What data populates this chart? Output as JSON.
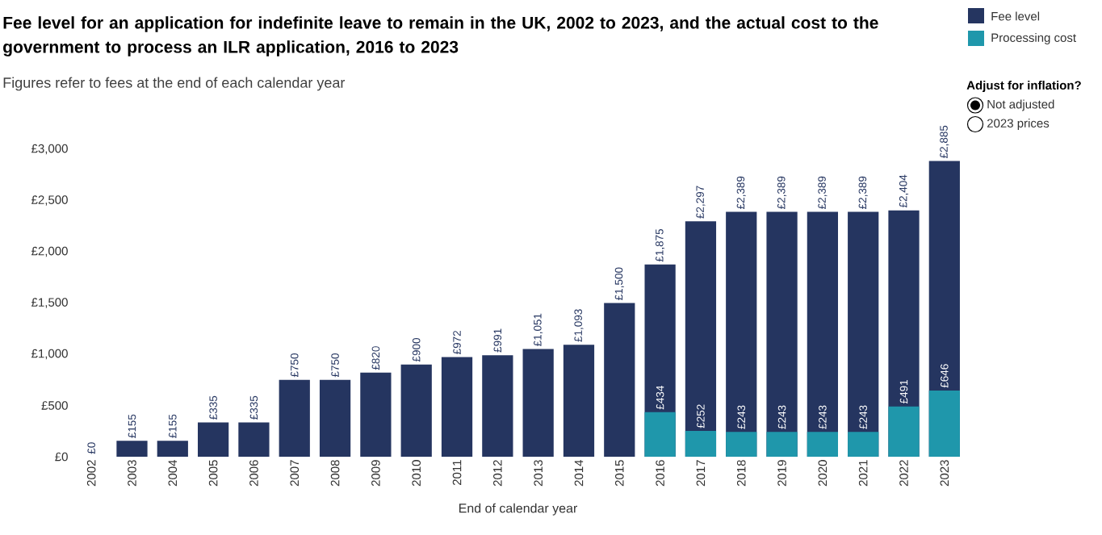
{
  "chart_data": {
    "type": "bar",
    "title": "Fee level for an application for indefinite leave to remain in the UK, 2002 to 2023, and the actual cost to the government to process an ILR application, 2016 to 2023",
    "subtitle": "Figures refer to fees at the end of each calendar year",
    "xlabel": "End of calendar year",
    "categories": [
      "2002",
      "2003",
      "2004",
      "2005",
      "2006",
      "2007",
      "2008",
      "2009",
      "2010",
      "2011",
      "2012",
      "2013",
      "2014",
      "2015",
      "2016",
      "2017",
      "2018",
      "2019",
      "2020",
      "2021",
      "2022",
      "2023"
    ],
    "series": [
      {
        "name": "Fee level",
        "color": "#253560",
        "values": [
          0,
          155,
          155,
          335,
          335,
          750,
          750,
          820,
          900,
          972,
          991,
          1051,
          1093,
          1500,
          1875,
          2297,
          2389,
          2389,
          2389,
          2389,
          2404,
          2885
        ],
        "value_labels": [
          "£0",
          "£155",
          "£155",
          "£335",
          "£335",
          "£750",
          "£750",
          "£820",
          "£900",
          "£972",
          "£991",
          "£1,051",
          "£1,093",
          "£1,500",
          "£1,875",
          "£2,297",
          "£2,389",
          "£2,389",
          "£2,389",
          "£2,389",
          "£2,404",
          "£2,885"
        ]
      },
      {
        "name": "Processing cost",
        "color": "#1f97ab",
        "values": [
          null,
          null,
          null,
          null,
          null,
          null,
          null,
          null,
          null,
          null,
          null,
          null,
          null,
          null,
          434,
          252,
          243,
          243,
          243,
          243,
          491,
          646
        ],
        "value_labels": [
          null,
          null,
          null,
          null,
          null,
          null,
          null,
          null,
          null,
          null,
          null,
          null,
          null,
          null,
          "£434",
          "£252",
          "£243",
          "£243",
          "£243",
          "£243",
          "£491",
          "£646"
        ]
      }
    ],
    "ylim": [
      0,
      3000
    ],
    "yticks": [
      {
        "value": 0,
        "label": "£0"
      },
      {
        "value": 500,
        "label": "£500"
      },
      {
        "value": 1000,
        "label": "£1,000"
      },
      {
        "value": 1500,
        "label": "£1,500"
      },
      {
        "value": 2000,
        "label": "£2,000"
      },
      {
        "value": 2500,
        "label": "£2,500"
      },
      {
        "value": 3000,
        "label": "£3,000"
      }
    ],
    "legend": "top right",
    "annotations": [
      "Adjust for inflation?",
      "Not adjusted",
      "2023 prices"
    ]
  }
}
